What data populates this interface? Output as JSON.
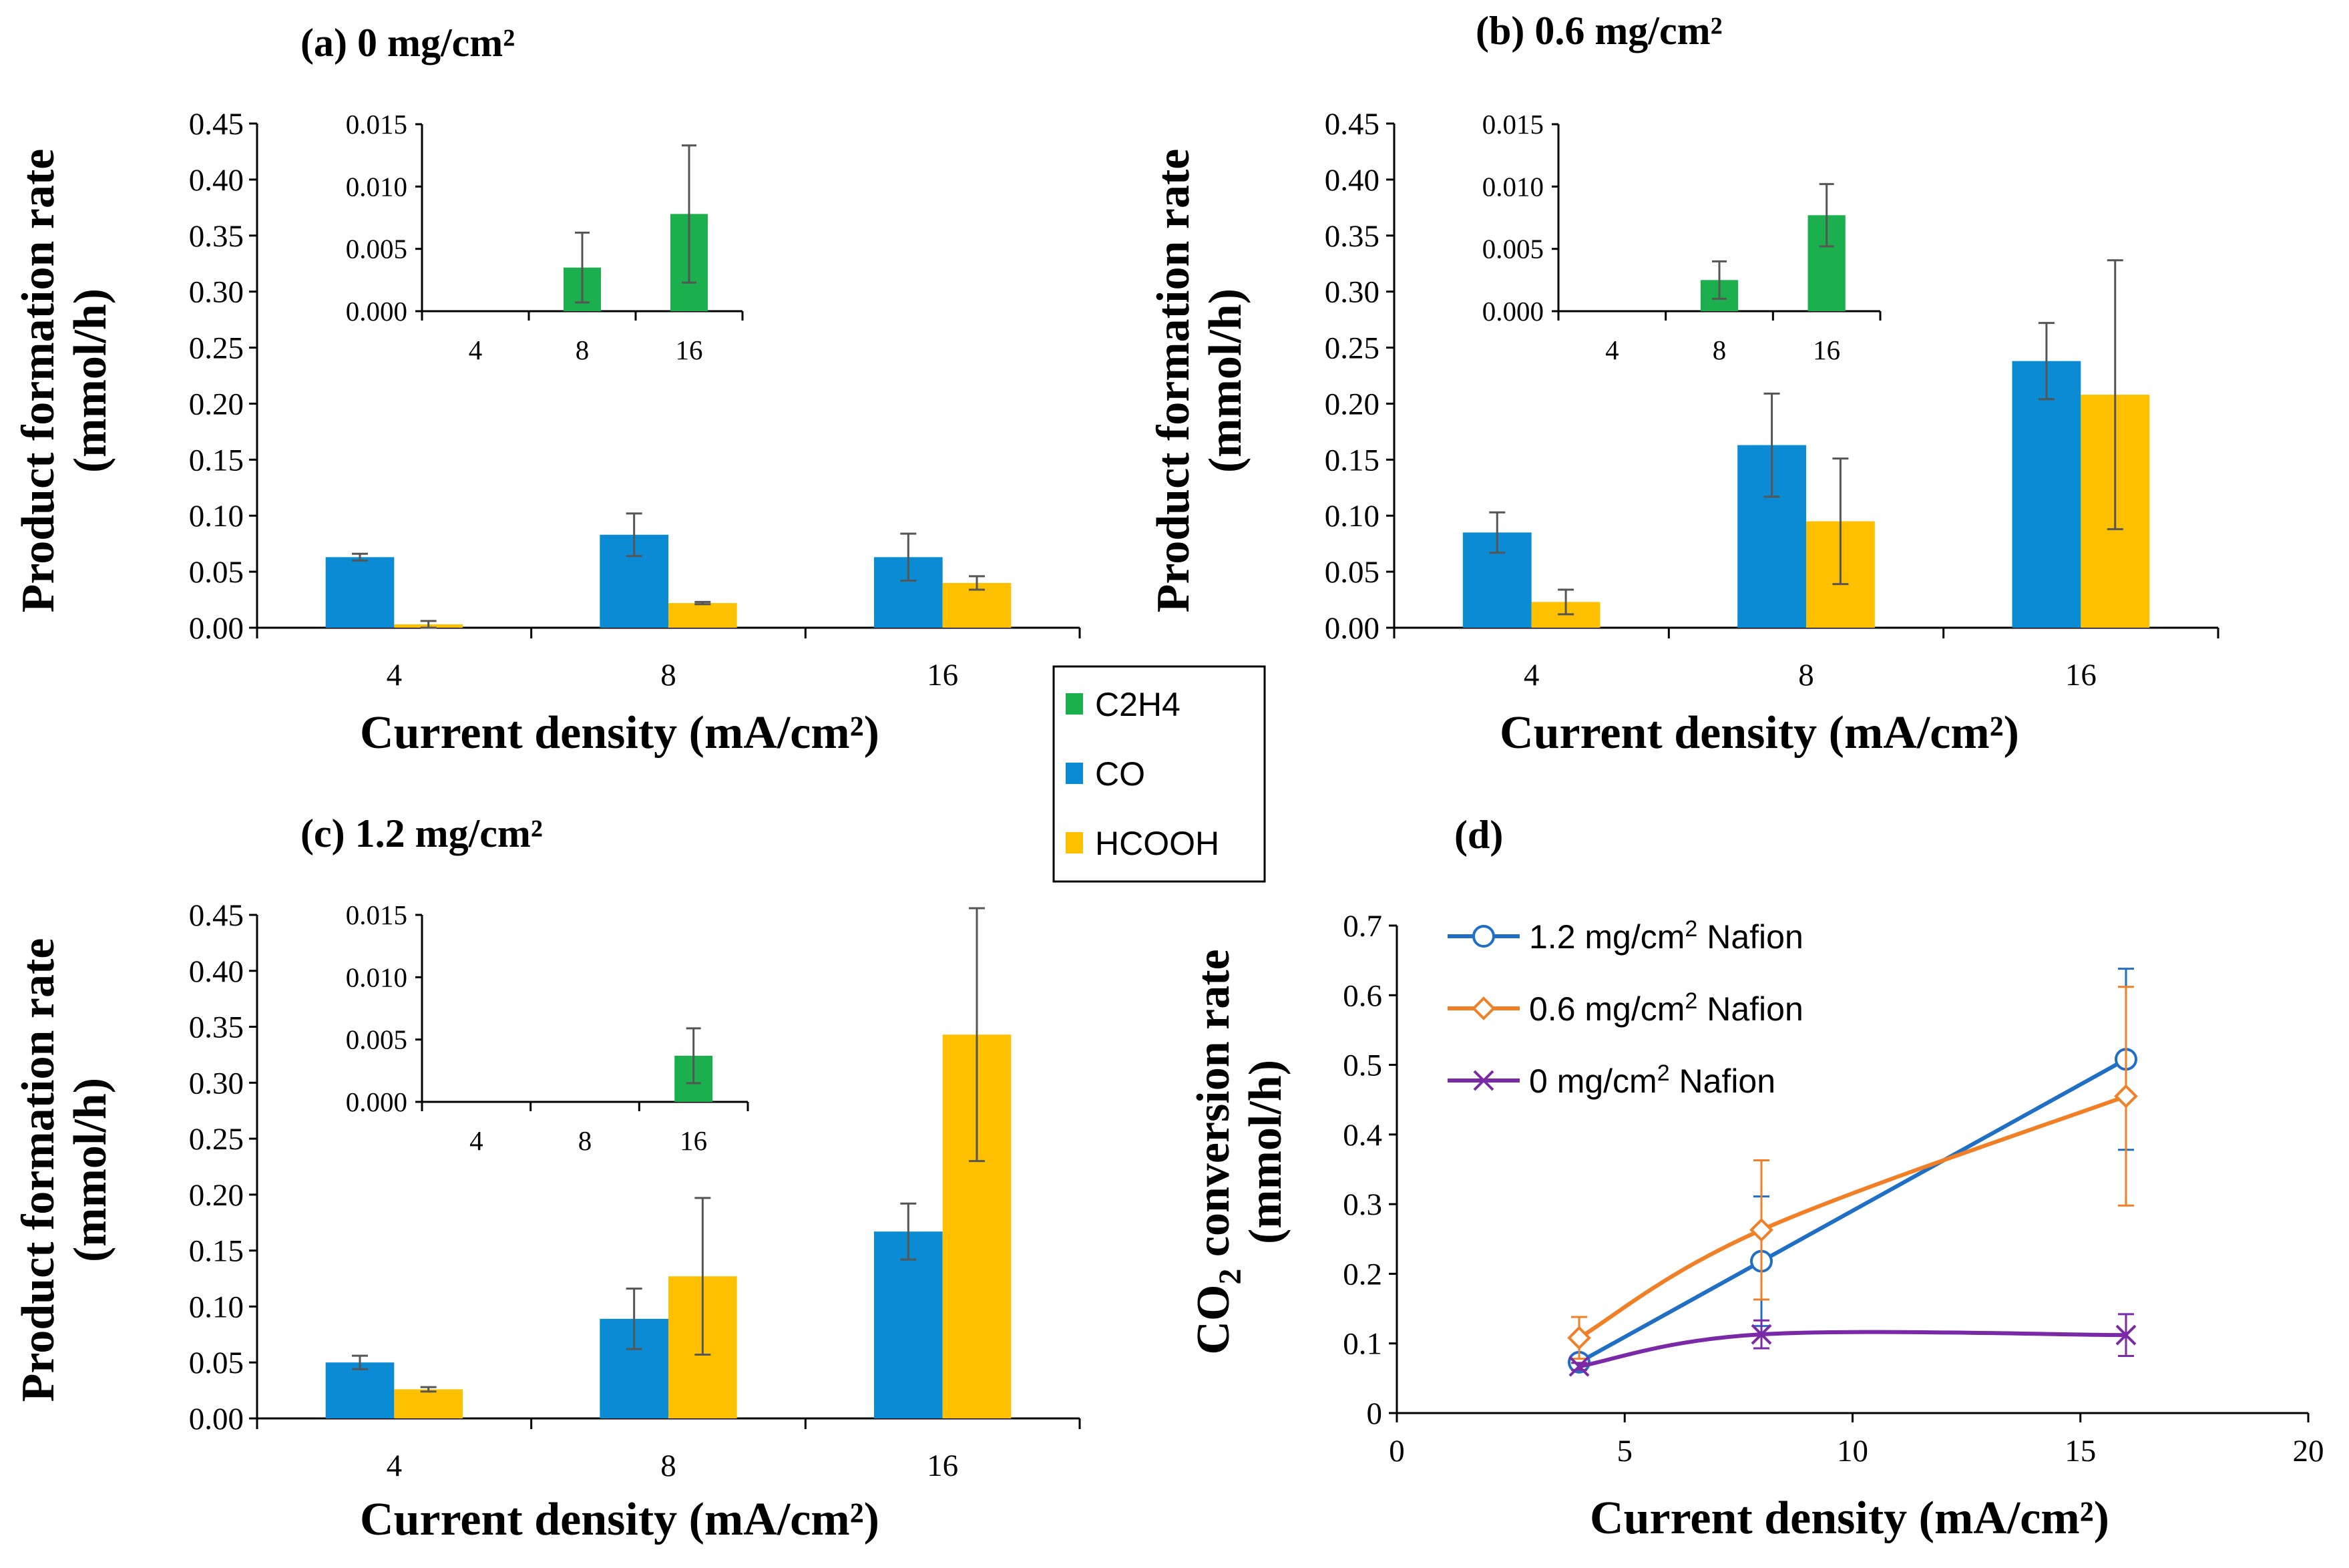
{
  "colors": {
    "C2H4": "#1bb04d",
    "CO": "#0a8bd3",
    "HCOOH": "#ffc000",
    "err": "#555555",
    "line_12": "#1f6fc6",
    "line_06": "#f07f26",
    "line_0": "#7b2aa7"
  },
  "legend": {
    "items": [
      "C2H4",
      "CO",
      "HCOOH"
    ]
  },
  "chart_data": [
    {
      "id": "a",
      "type": "bar",
      "title": "(a) 0 mg/cm²",
      "xlabel": "Current density (mA/cm²)",
      "ylabel_line1": "Product formation rate",
      "ylabel_line2": "(mmol/h)",
      "categories": [
        "4",
        "8",
        "16"
      ],
      "ylim": [
        0,
        0.45
      ],
      "yticks": [
        "0.00",
        "0.05",
        "0.10",
        "0.15",
        "0.20",
        "0.25",
        "0.30",
        "0.35",
        "0.40",
        "0.45"
      ],
      "series": [
        {
          "name": "CO",
          "values": [
            0.063,
            0.083,
            0.063
          ],
          "errors": [
            0.003,
            0.019,
            0.021
          ]
        },
        {
          "name": "HCOOH",
          "values": [
            0.003,
            0.022,
            0.04
          ],
          "errors": [
            0.003,
            0.001,
            0.006
          ]
        }
      ],
      "inset": {
        "categories": [
          "4",
          "8",
          "16"
        ],
        "ylim": [
          0,
          0.015
        ],
        "yticks": [
          "0.000",
          "0.005",
          "0.010",
          "0.015"
        ],
        "series": [
          {
            "name": "C2H4",
            "values": [
              0,
              0.0035,
              0.0078
            ],
            "errors": [
              0,
              0.0028,
              0.0055
            ]
          }
        ]
      }
    },
    {
      "id": "b",
      "type": "bar",
      "title": "(b) 0.6 mg/cm²",
      "xlabel": "Current density (mA/cm²)",
      "ylabel_line1": "Product formation rate",
      "ylabel_line2": "(mmol/h)",
      "categories": [
        "4",
        "8",
        "16"
      ],
      "ylim": [
        0,
        0.45
      ],
      "yticks": [
        "0.00",
        "0.05",
        "0.10",
        "0.15",
        "0.20",
        "0.25",
        "0.30",
        "0.35",
        "0.40",
        "0.45"
      ],
      "series": [
        {
          "name": "CO",
          "values": [
            0.085,
            0.163,
            0.238
          ],
          "errors": [
            0.018,
            0.046,
            0.034
          ]
        },
        {
          "name": "HCOOH",
          "values": [
            0.023,
            0.095,
            0.208
          ],
          "errors": [
            0.011,
            0.056,
            0.12
          ]
        }
      ],
      "inset": {
        "categories": [
          "4",
          "8",
          "16"
        ],
        "ylim": [
          0,
          0.015
        ],
        "yticks": [
          "0.000",
          "0.005",
          "0.010",
          "0.015"
        ],
        "series": [
          {
            "name": "C2H4",
            "values": [
              0,
              0.0025,
              0.0077
            ],
            "errors": [
              0,
              0.0015,
              0.0025
            ]
          }
        ]
      }
    },
    {
      "id": "c",
      "type": "bar",
      "title": "(c) 1.2 mg/cm²",
      "xlabel": "Current density (mA/cm²)",
      "ylabel_line1": "Product formation rate",
      "ylabel_line2": "(mmol/h)",
      "categories": [
        "4",
        "8",
        "16"
      ],
      "ylim": [
        0,
        0.45
      ],
      "yticks": [
        "0.00",
        "0.05",
        "0.10",
        "0.15",
        "0.20",
        "0.25",
        "0.30",
        "0.35",
        "0.40",
        "0.45"
      ],
      "series": [
        {
          "name": "CO",
          "values": [
            0.05,
            0.089,
            0.167
          ],
          "errors": [
            0.006,
            0.027,
            0.025
          ]
        },
        {
          "name": "HCOOH",
          "values": [
            0.026,
            0.127,
            0.343
          ],
          "errors": [
            0.002,
            0.07,
            0.113
          ]
        }
      ],
      "inset": {
        "categories": [
          "4",
          "8",
          "16"
        ],
        "ylim": [
          0,
          0.015
        ],
        "yticks": [
          "0.000",
          "0.005",
          "0.010",
          "0.015"
        ],
        "series": [
          {
            "name": "C2H4",
            "values": [
              0,
              0,
              0.0037
            ],
            "errors": [
              0,
              0,
              0.0022
            ]
          }
        ]
      }
    },
    {
      "id": "d",
      "type": "line",
      "title": "(d)",
      "xlabel": "Current density (mA/cm²)",
      "ylabel_pre": "CO",
      "ylabel_sub": "2",
      "ylabel_post": " conversion rate",
      "ylabel_line2": "(mmol/h)",
      "xlim": [
        0,
        20
      ],
      "ylim": [
        0,
        0.7
      ],
      "xticks": [
        "0",
        "5",
        "10",
        "15",
        "20"
      ],
      "yticks": [
        "0",
        "0.1",
        "0.2",
        "0.3",
        "0.4",
        "0.5",
        "0.6",
        "0.7"
      ],
      "series": [
        {
          "name": "1.2 mg/cm² Nafion",
          "label_pre": "1.2 mg/cm",
          "label_post": " Nafion",
          "marker": "circle",
          "x": [
            4,
            8,
            16
          ],
          "y": [
            0.073,
            0.218,
            0.508
          ],
          "errors": [
            0.005,
            0.093,
            0.13
          ]
        },
        {
          "name": "0.6 mg/cm² Nafion",
          "label_pre": "0.6 mg/cm",
          "label_post": " Nafion",
          "marker": "diamond",
          "x": [
            4,
            8,
            16
          ],
          "y": [
            0.108,
            0.263,
            0.455
          ],
          "errors": [
            0.03,
            0.1,
            0.157
          ]
        },
        {
          "name": "0 mg/cm² Nafion",
          "label_pre": "0 mg/cm",
          "label_post": " Nafion",
          "marker": "x",
          "x": [
            4,
            8,
            16
          ],
          "y": [
            0.067,
            0.113,
            0.112
          ],
          "errors": [
            0.005,
            0.02,
            0.03
          ]
        }
      ]
    }
  ]
}
